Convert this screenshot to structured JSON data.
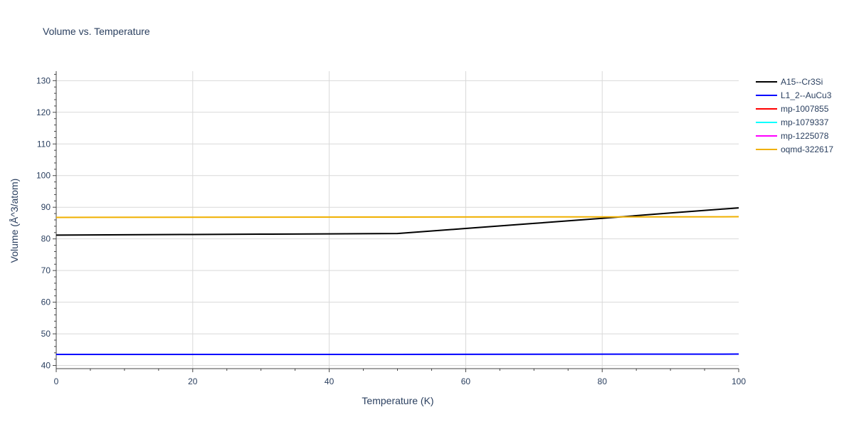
{
  "chart_data": {
    "type": "line",
    "title": "Volume vs. Temperature",
    "xlabel": "Temperature (K)",
    "ylabel": "Volume (Å^3/atom)",
    "xlim": [
      0,
      100
    ],
    "ylim": [
      39,
      133
    ],
    "xticks": [
      0,
      20,
      40,
      60,
      80,
      100
    ],
    "yticks": [
      40,
      50,
      60,
      70,
      80,
      90,
      100,
      110,
      120,
      130
    ],
    "grid": true,
    "legend_position": "right",
    "series": [
      {
        "name": "A15--Cr3Si",
        "color": "#000000",
        "x": [
          0,
          10,
          20,
          30,
          40,
          50,
          60,
          70,
          80,
          90,
          100
        ],
        "y": [
          81.2,
          81.3,
          81.4,
          81.5,
          81.6,
          81.7,
          83.3,
          84.9,
          86.5,
          88.2,
          89.8
        ]
      },
      {
        "name": "L1_2--AuCu3",
        "color": "#0000ff",
        "x": [
          0,
          50,
          100
        ],
        "y": [
          43.5,
          43.5,
          43.6
        ]
      },
      {
        "name": "mp-1007855",
        "color": "#ff0000",
        "x": [],
        "y": []
      },
      {
        "name": "mp-1079337",
        "color": "#00ffff",
        "x": [],
        "y": []
      },
      {
        "name": "mp-1225078",
        "color": "#ff00ff",
        "x": [],
        "y": []
      },
      {
        "name": "oqmd-322617",
        "color": "#f0b000",
        "x": [
          0,
          50,
          100
        ],
        "y": [
          86.8,
          86.9,
          87.0
        ]
      }
    ]
  }
}
